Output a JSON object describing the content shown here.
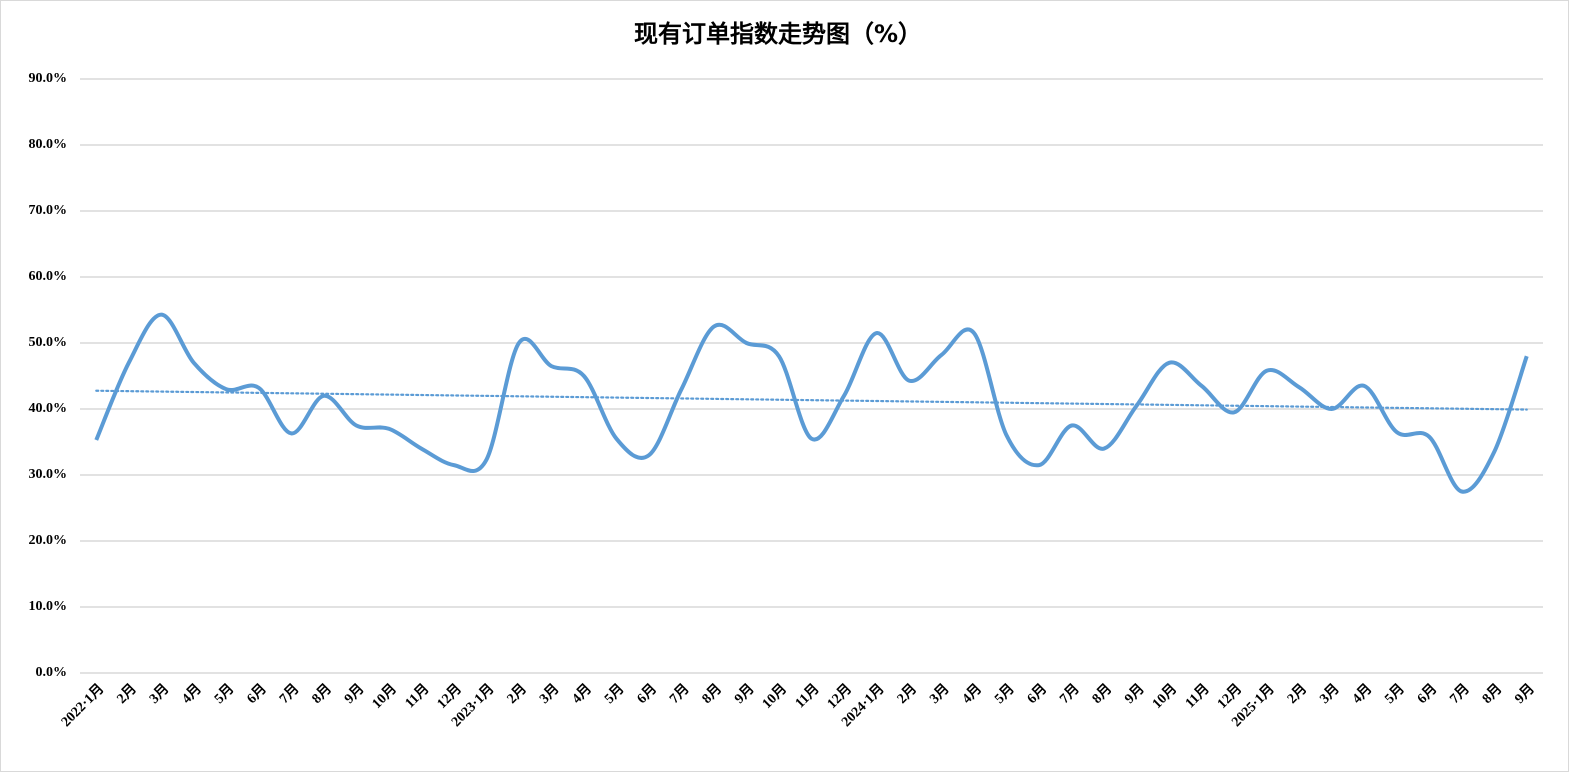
{
  "chart_data": {
    "type": "line",
    "title": "现有订单指数走势图（%）",
    "categories": [
      "2022·1月",
      "2月",
      "3月",
      "4月",
      "5月",
      "6月",
      "7月",
      "8月",
      "9月",
      "10月",
      "11月",
      "12月",
      "2023·1月",
      "2月",
      "3月",
      "4月",
      "5月",
      "6月",
      "7月",
      "8月",
      "9月",
      "10月",
      "11月",
      "12月",
      "2024·1月",
      "2月",
      "3月",
      "4月",
      "5月",
      "6月",
      "7月",
      "8月",
      "9月",
      "10月",
      "11月",
      "12月",
      "2025·1月",
      "2月",
      "3月",
      "4月",
      "5月",
      "6月",
      "7月",
      "8月",
      "9月"
    ],
    "series": [
      {
        "name": "现有订单指数",
        "color": "#5b9bd5",
        "values": [
          35.3,
          47,
          54.3,
          47,
          43,
          43.2,
          36.3,
          42,
          37.5,
          37,
          34,
          31.5,
          32.3,
          50,
          46.5,
          45,
          35.5,
          33,
          43,
          52.5,
          50,
          48,
          35.5,
          42,
          51.5,
          44.3,
          48.2,
          51.5,
          36,
          31.5,
          37.5,
          34,
          40.5,
          47,
          43.5,
          39.5,
          45.8,
          43.3,
          40,
          43.5,
          36.5,
          35.8,
          27.5,
          33.5,
          48
        ]
      }
    ],
    "ylim": [
      0,
      90
    ],
    "yticks": [
      {
        "value": 0,
        "label": "0.0%"
      },
      {
        "value": 10,
        "label": "10.0%"
      },
      {
        "value": 20,
        "label": "20.0%"
      },
      {
        "value": 30,
        "label": "30.0%"
      },
      {
        "value": 40,
        "label": "40.0%"
      },
      {
        "value": 50,
        "label": "50.0%"
      },
      {
        "value": 60,
        "label": "60.0%"
      },
      {
        "value": 70,
        "label": "70.0%"
      },
      {
        "value": 80,
        "label": "80.0%"
      },
      {
        "value": 90,
        "label": "90.0%"
      }
    ],
    "grid": true,
    "smooth": true,
    "trendline": "linear"
  }
}
